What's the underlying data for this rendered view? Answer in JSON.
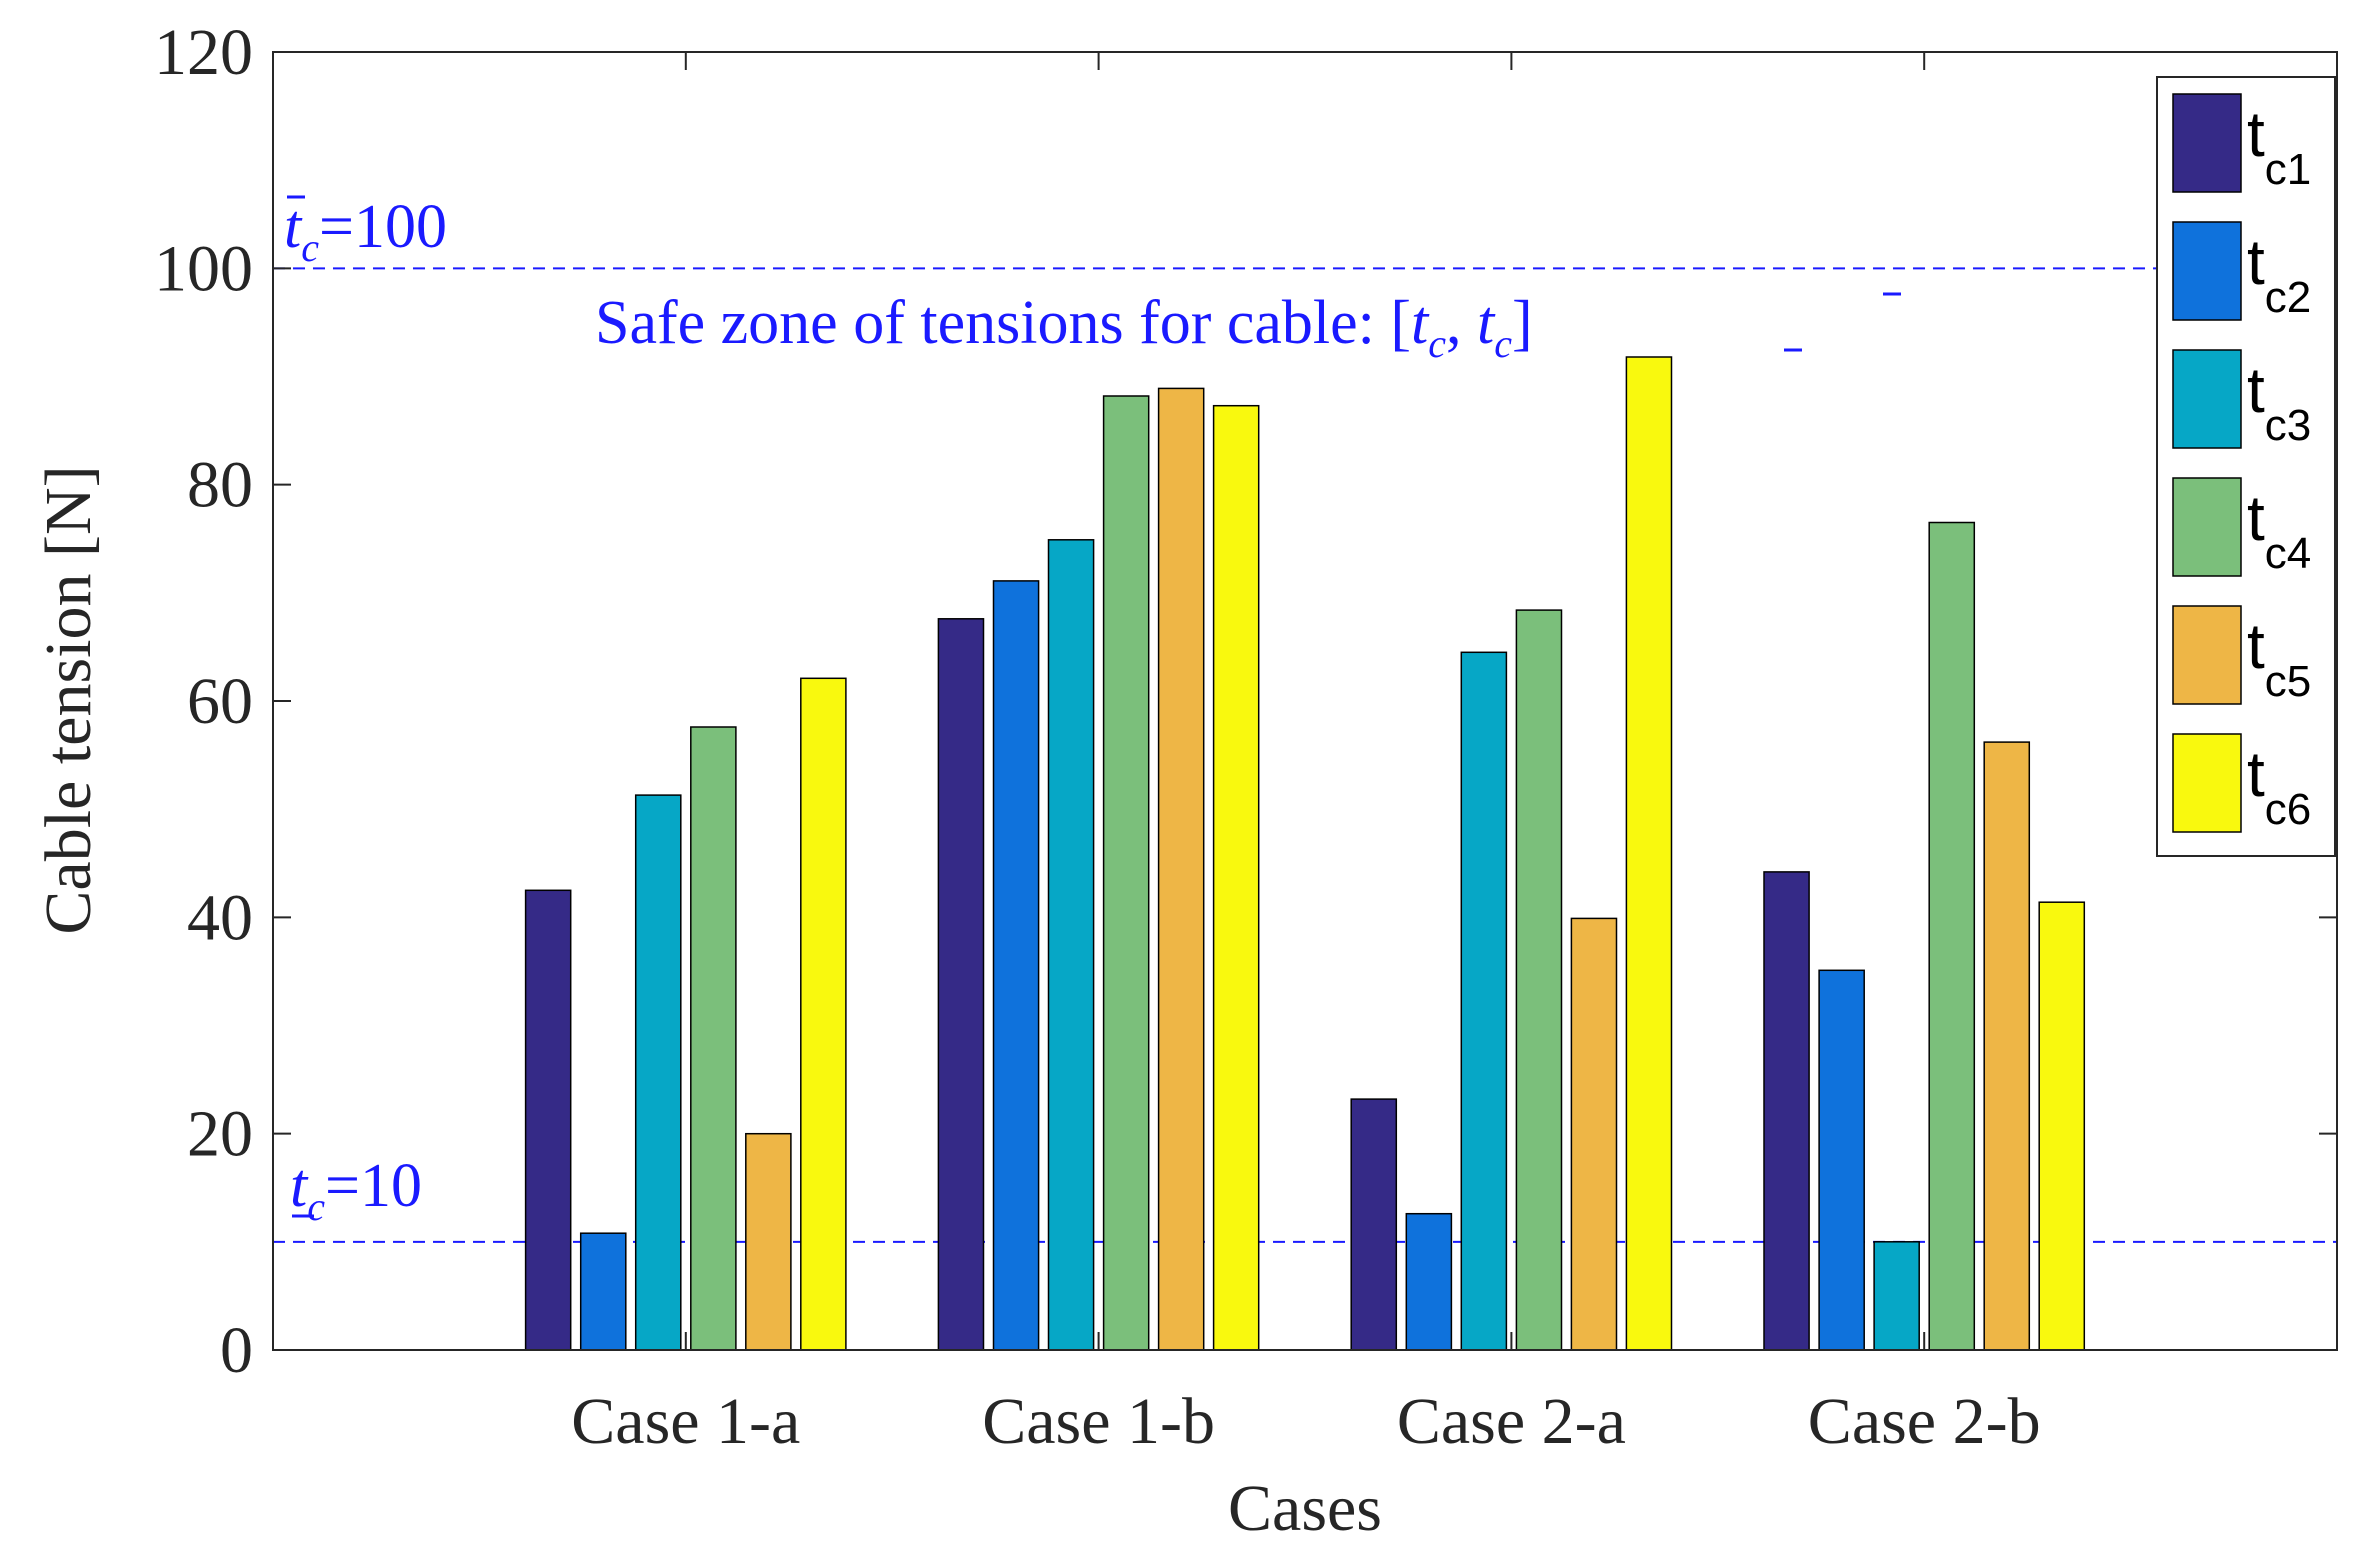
{
  "chart_data": {
    "type": "bar",
    "title": "",
    "xlabel": "Cases",
    "ylabel": "Cable tension  [N]",
    "categories": [
      "Case 1-a",
      "Case 1-b",
      "Case 2-a",
      "Case 2-b"
    ],
    "ylim": [
      0,
      120
    ],
    "yticks": [
      "0",
      "20",
      "40",
      "60",
      "80",
      "100",
      "120"
    ],
    "xlim": [
      0.0,
      5.0
    ],
    "legend_position": "top-right",
    "series": [
      {
        "name": "t",
        "sub": "c1",
        "color": "#352a87",
        "values": [
          42.5,
          67.6,
          23.2,
          44.2
        ]
      },
      {
        "name": "t",
        "sub": "c2",
        "color": "#0f72dc",
        "values": [
          10.8,
          71.1,
          12.6,
          35.1
        ]
      },
      {
        "name": "t",
        "sub": "c3",
        "color": "#06a7c6",
        "values": [
          51.3,
          74.9,
          64.5,
          10.0
        ]
      },
      {
        "name": "t",
        "sub": "c4",
        "color": "#7bbf7b",
        "values": [
          57.6,
          88.2,
          68.4,
          76.5
        ]
      },
      {
        "name": "t",
        "sub": "c5",
        "color": "#eeb646",
        "values": [
          20.0,
          88.9,
          39.9,
          56.2
        ]
      },
      {
        "name": "t",
        "sub": "c6",
        "color": "#f9f90e",
        "values": [
          62.1,
          87.3,
          91.8,
          41.4
        ]
      }
    ],
    "reference_lines": [
      {
        "value": 100,
        "label_prefix": "t",
        "label_suffix": "=100",
        "mark": "bar"
      },
      {
        "value": 10,
        "label_prefix": "t",
        "label_suffix": "=10",
        "mark": "underline"
      }
    ],
    "annotation": {
      "text": "Safe zone of tensions for cable: ",
      "at_y": 95
    },
    "colors": {
      "reference": "#1a1aff",
      "axis": "#262626",
      "text": "#262626"
    }
  }
}
